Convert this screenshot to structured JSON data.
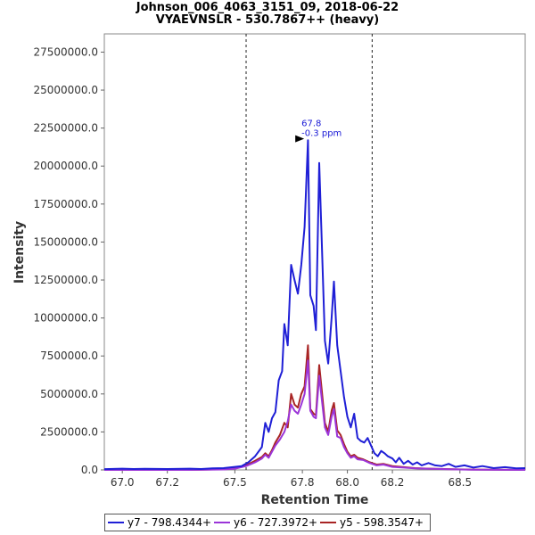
{
  "title": "Johnson_006_4063_3151_09, 2018-06-22",
  "subtitle": "VYAEVNSLR - 530.7867++ (heavy)",
  "chart_data": {
    "type": "line",
    "xlabel": "Retention Time",
    "ylabel": "Intensity",
    "xlim": [
      66.92,
      68.79
    ],
    "ylim": [
      0,
      28700000
    ],
    "xticks": [
      67.0,
      67.2,
      67.5,
      67.8,
      68.0,
      68.2,
      68.5
    ],
    "xtick_labels": [
      "67.0",
      "67.2",
      "67.5",
      "67.8",
      "68.0",
      "68.2",
      "68.5"
    ],
    "yticks": [
      0,
      2500000,
      5000000,
      7500000,
      10000000,
      12500000,
      15000000,
      17500000,
      20000000,
      22500000,
      25000000,
      27500000
    ],
    "ytick_labels": [
      "0.0",
      "2500000.0",
      "5000000.0",
      "7500000.0",
      "10000000.0",
      "12500000.0",
      "15000000.0",
      "17500000.0",
      "20000000.0",
      "22500000.0",
      "25000000.0",
      "27500000.0"
    ],
    "vlines": [
      67.55,
      68.11
    ],
    "annotation": {
      "x": 67.82,
      "y": 21800000,
      "line1": "67.8",
      "line2": "-0.3 ppm"
    },
    "series": [
      {
        "name": "y7 - 798.4344+",
        "color": "#1f1fd6",
        "points": [
          [
            66.92,
            50000
          ],
          [
            67.0,
            80000
          ],
          [
            67.05,
            60000
          ],
          [
            67.1,
            70000
          ],
          [
            67.2,
            60000
          ],
          [
            67.3,
            80000
          ],
          [
            67.35,
            60000
          ],
          [
            67.4,
            100000
          ],
          [
            67.45,
            120000
          ],
          [
            67.5,
            200000
          ],
          [
            67.53,
            250000
          ],
          [
            67.56,
            500000
          ],
          [
            67.59,
            900000
          ],
          [
            67.62,
            1500000
          ],
          [
            67.635,
            3100000
          ],
          [
            67.65,
            2500000
          ],
          [
            67.665,
            3400000
          ],
          [
            67.68,
            3800000
          ],
          [
            67.695,
            5900000
          ],
          [
            67.71,
            6500000
          ],
          [
            67.72,
            9600000
          ],
          [
            67.735,
            8200000
          ],
          [
            67.75,
            13500000
          ],
          [
            67.765,
            12500000
          ],
          [
            67.78,
            11600000
          ],
          [
            67.795,
            13500000
          ],
          [
            67.81,
            16000000
          ],
          [
            67.825,
            21700000
          ],
          [
            67.835,
            11500000
          ],
          [
            67.85,
            10800000
          ],
          [
            67.86,
            9200000
          ],
          [
            67.875,
            20200000
          ],
          [
            67.885,
            15500000
          ],
          [
            67.9,
            8500000
          ],
          [
            67.915,
            7000000
          ],
          [
            67.93,
            10000000
          ],
          [
            67.94,
            12400000
          ],
          [
            67.955,
            8200000
          ],
          [
            67.97,
            6500000
          ],
          [
            67.985,
            4800000
          ],
          [
            68.0,
            3500000
          ],
          [
            68.015,
            2800000
          ],
          [
            68.03,
            3700000
          ],
          [
            68.045,
            2100000
          ],
          [
            68.06,
            1900000
          ],
          [
            68.075,
            1800000
          ],
          [
            68.09,
            2100000
          ],
          [
            68.105,
            1600000
          ],
          [
            68.12,
            1100000
          ],
          [
            68.135,
            900000
          ],
          [
            68.15,
            1250000
          ],
          [
            68.165,
            1100000
          ],
          [
            68.18,
            900000
          ],
          [
            68.2,
            750000
          ],
          [
            68.215,
            500000
          ],
          [
            68.23,
            800000
          ],
          [
            68.25,
            400000
          ],
          [
            68.27,
            600000
          ],
          [
            68.29,
            350000
          ],
          [
            68.31,
            500000
          ],
          [
            68.33,
            300000
          ],
          [
            68.36,
            450000
          ],
          [
            68.39,
            300000
          ],
          [
            68.42,
            250000
          ],
          [
            68.45,
            400000
          ],
          [
            68.48,
            200000
          ],
          [
            68.52,
            300000
          ],
          [
            68.56,
            150000
          ],
          [
            68.6,
            250000
          ],
          [
            68.65,
            120000
          ],
          [
            68.7,
            180000
          ],
          [
            68.75,
            100000
          ],
          [
            68.79,
            120000
          ]
        ]
      },
      {
        "name": "y6 - 727.3972+",
        "color": "#9b35d8",
        "points": [
          [
            66.92,
            0
          ],
          [
            67.3,
            0
          ],
          [
            67.45,
            30000
          ],
          [
            67.5,
            80000
          ],
          [
            67.55,
            250000
          ],
          [
            67.59,
            500000
          ],
          [
            67.62,
            750000
          ],
          [
            67.635,
            1000000
          ],
          [
            67.65,
            800000
          ],
          [
            67.665,
            1200000
          ],
          [
            67.68,
            1600000
          ],
          [
            67.7,
            2000000
          ],
          [
            67.72,
            2500000
          ],
          [
            67.735,
            3200000
          ],
          [
            67.75,
            4300000
          ],
          [
            67.765,
            3900000
          ],
          [
            67.78,
            3700000
          ],
          [
            67.795,
            4300000
          ],
          [
            67.81,
            5000000
          ],
          [
            67.825,
            7200000
          ],
          [
            67.835,
            3900000
          ],
          [
            67.85,
            3500000
          ],
          [
            67.86,
            3400000
          ],
          [
            67.875,
            6200000
          ],
          [
            67.885,
            4800000
          ],
          [
            67.9,
            2800000
          ],
          [
            67.915,
            2300000
          ],
          [
            67.93,
            3500000
          ],
          [
            67.94,
            4000000
          ],
          [
            67.955,
            2200000
          ],
          [
            67.97,
            2100000
          ],
          [
            67.985,
            1500000
          ],
          [
            68.0,
            1100000
          ],
          [
            68.015,
            800000
          ],
          [
            68.03,
            900000
          ],
          [
            68.045,
            700000
          ],
          [
            68.07,
            650000
          ],
          [
            68.1,
            450000
          ],
          [
            68.13,
            300000
          ],
          [
            68.16,
            350000
          ],
          [
            68.2,
            200000
          ],
          [
            68.25,
            150000
          ],
          [
            68.3,
            100000
          ],
          [
            68.35,
            80000
          ],
          [
            68.45,
            40000
          ],
          [
            68.55,
            20000
          ],
          [
            68.79,
            0
          ]
        ]
      },
      {
        "name": "y5 - 598.3547+",
        "color": "#a82424",
        "points": [
          [
            66.92,
            0
          ],
          [
            67.3,
            0
          ],
          [
            67.45,
            40000
          ],
          [
            67.5,
            100000
          ],
          [
            67.55,
            300000
          ],
          [
            67.59,
            600000
          ],
          [
            67.62,
            850000
          ],
          [
            67.635,
            1100000
          ],
          [
            67.65,
            900000
          ],
          [
            67.665,
            1300000
          ],
          [
            67.68,
            1800000
          ],
          [
            67.7,
            2300000
          ],
          [
            67.72,
            3100000
          ],
          [
            67.735,
            2800000
          ],
          [
            67.75,
            5000000
          ],
          [
            67.765,
            4300000
          ],
          [
            67.78,
            4100000
          ],
          [
            67.795,
            5000000
          ],
          [
            67.81,
            5500000
          ],
          [
            67.825,
            8200000
          ],
          [
            67.835,
            4000000
          ],
          [
            67.85,
            3700000
          ],
          [
            67.86,
            3600000
          ],
          [
            67.875,
            6900000
          ],
          [
            67.885,
            5400000
          ],
          [
            67.9,
            3100000
          ],
          [
            67.915,
            2500000
          ],
          [
            67.93,
            3900000
          ],
          [
            67.94,
            4400000
          ],
          [
            67.955,
            2600000
          ],
          [
            67.97,
            2300000
          ],
          [
            67.985,
            1700000
          ],
          [
            68.0,
            1200000
          ],
          [
            68.015,
            900000
          ],
          [
            68.03,
            1000000
          ],
          [
            68.045,
            800000
          ],
          [
            68.07,
            700000
          ],
          [
            68.1,
            500000
          ],
          [
            68.13,
            350000
          ],
          [
            68.16,
            400000
          ],
          [
            68.2,
            250000
          ],
          [
            68.25,
            180000
          ],
          [
            68.3,
            120000
          ],
          [
            68.35,
            90000
          ],
          [
            68.45,
            50000
          ],
          [
            68.55,
            25000
          ],
          [
            68.79,
            0
          ]
        ]
      }
    ]
  },
  "legend": {
    "items": [
      {
        "label": "y7 - 798.4344+",
        "color": "#1f1fd6"
      },
      {
        "label": "y6 - 727.3972+",
        "color": "#9b35d8"
      },
      {
        "label": "y5 - 598.3547+",
        "color": "#a82424"
      }
    ]
  }
}
